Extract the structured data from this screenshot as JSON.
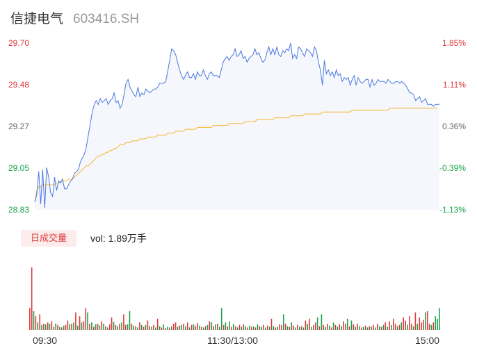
{
  "header": {
    "stock_name": "信捷电气",
    "stock_code": "603416.SH"
  },
  "price_axis": {
    "left_labels": [
      "29.70",
      "29.48",
      "29.27",
      "29.05",
      "28.83"
    ],
    "right_labels": [
      "1.85%",
      "1.11%",
      "0.36%",
      "-0.39%",
      "-1.13%"
    ],
    "label_colors": [
      "#e0383a",
      "#e0383a",
      "#666666",
      "#1aa34a",
      "#1aa34a"
    ]
  },
  "volume": {
    "tab_label": "日成交量",
    "readout": "vol: 1.89万手"
  },
  "time_axis": [
    "09:30",
    "11:30/13:00",
    "15:00"
  ],
  "colors": {
    "price_line": "#4a78e0",
    "avg_line": "#f5b52a",
    "up": "#e0383a",
    "down": "#1aa34a",
    "area_fill": "#f5f7fd"
  },
  "chart_data": [
    {
      "type": "line",
      "title": "",
      "ylim": [
        28.83,
        29.7
      ],
      "x_range": [
        "09:30",
        "15:00"
      ],
      "series": [
        {
          "name": "",
          "values": [
            28.87,
            28.91,
            29.03,
            28.86,
            29.04,
            28.84,
            29.05,
            29.0,
            28.92,
            28.9,
            29.0,
            28.93,
            28.98,
            28.97,
            28.99,
            28.94,
            28.94,
            28.96,
            28.98,
            28.99,
            29.02,
            29.03,
            29.04,
            29.08,
            29.1,
            29.12,
            29.16,
            29.22,
            29.28,
            29.34,
            29.38,
            29.4,
            29.38,
            29.41,
            29.39,
            29.4,
            29.41,
            29.38,
            29.4,
            29.41,
            29.44,
            29.39,
            29.4,
            29.36,
            29.38,
            29.43,
            29.49,
            29.51,
            29.47,
            29.45,
            29.43,
            29.42,
            29.47,
            29.42,
            29.44,
            29.43,
            29.46,
            29.45,
            29.44,
            29.45,
            29.46,
            29.46,
            29.47,
            29.49,
            29.49,
            29.49,
            29.5,
            29.55,
            29.61,
            29.67,
            29.66,
            29.64,
            29.6,
            29.56,
            29.53,
            29.51,
            29.53,
            29.55,
            29.52,
            29.52,
            29.54,
            29.51,
            29.55,
            29.53,
            29.53,
            29.56,
            29.53,
            29.51,
            29.54,
            29.55,
            29.53,
            29.53,
            29.53,
            29.52,
            29.56,
            29.6,
            29.62,
            29.63,
            29.61,
            29.63,
            29.64,
            29.67,
            29.63,
            29.64,
            29.66,
            29.62,
            29.63,
            29.6,
            29.62,
            29.63,
            29.64,
            29.67,
            29.64,
            29.65,
            29.62,
            29.6,
            29.61,
            29.65,
            29.68,
            29.64,
            29.67,
            29.64,
            29.68,
            29.64,
            29.63,
            29.66,
            29.65,
            29.67,
            29.66,
            29.7,
            29.62,
            29.64,
            29.62,
            29.68,
            29.67,
            29.65,
            29.63,
            29.67,
            29.66,
            29.65,
            29.63,
            29.68,
            29.66,
            29.6,
            29.56,
            29.48,
            29.61,
            29.54,
            29.56,
            29.53,
            29.55,
            29.52,
            29.56,
            29.53,
            29.54,
            29.5,
            29.52,
            29.51,
            29.52,
            29.48,
            29.51,
            29.53,
            29.48,
            29.52,
            29.5,
            29.49,
            29.5,
            29.51,
            29.51,
            29.47,
            29.51,
            29.48,
            29.49,
            29.51,
            29.5,
            29.5,
            29.5,
            29.49,
            29.51,
            29.5,
            29.49,
            29.49,
            29.5,
            29.5,
            29.49,
            29.5,
            29.49,
            29.48,
            29.46,
            29.44,
            29.44,
            29.43,
            29.4,
            29.41,
            29.42,
            29.39,
            29.4,
            29.41,
            29.38,
            29.38,
            29.38,
            29.37,
            29.38,
            29.38,
            29.38
          ]
        },
        {
          "name": "",
          "values": [
            28.87,
            28.93,
            28.95,
            28.95,
            28.96,
            28.96,
            28.96,
            28.96,
            28.96,
            28.96,
            28.96,
            28.97,
            28.97,
            28.98,
            28.98,
            28.98,
            28.98,
            28.99,
            28.99,
            28.99,
            29.0,
            29.01,
            29.02,
            29.03,
            29.04,
            29.05,
            29.06,
            29.06,
            29.07,
            29.08,
            29.09,
            29.1,
            29.11,
            29.11,
            29.12,
            29.12,
            29.13,
            29.13,
            29.14,
            29.14,
            29.15,
            29.15,
            29.16,
            29.17,
            29.17,
            29.17,
            29.18,
            29.18,
            29.18,
            29.19,
            29.19,
            29.19,
            29.19,
            29.2,
            29.2,
            29.2,
            29.2,
            29.21,
            29.21,
            29.21,
            29.21,
            29.21,
            29.22,
            29.22,
            29.22,
            29.22,
            29.22,
            29.23,
            29.23,
            29.23,
            29.23,
            29.24,
            29.24,
            29.24,
            29.24,
            29.24,
            29.25,
            29.25,
            29.25,
            29.25,
            29.25,
            29.25,
            29.26,
            29.26,
            29.26,
            29.26,
            29.26,
            29.26,
            29.26,
            29.26,
            29.27,
            29.27,
            29.27,
            29.27,
            29.27,
            29.27,
            29.27,
            29.27,
            29.28,
            29.28,
            29.28,
            29.28,
            29.28,
            29.28,
            29.28,
            29.28,
            29.29,
            29.29,
            29.29,
            29.29,
            29.29,
            29.29,
            29.3,
            29.3,
            29.3,
            29.3,
            29.3,
            29.3,
            29.3,
            29.3,
            29.3,
            29.31,
            29.31,
            29.31,
            29.31,
            29.31,
            29.31,
            29.31,
            29.31,
            29.32,
            29.32,
            29.32,
            29.32,
            29.32,
            29.32,
            29.32,
            29.33,
            29.33,
            29.33,
            29.33,
            29.33,
            29.33,
            29.33,
            29.33,
            29.33,
            29.34,
            29.34,
            29.34,
            29.34,
            29.34,
            29.34,
            29.34,
            29.34,
            29.34,
            29.34,
            29.34,
            29.34,
            29.34,
            29.34,
            29.34,
            29.35,
            29.35,
            29.35,
            29.35,
            29.35,
            29.35,
            29.35,
            29.35,
            29.35,
            29.35,
            29.35,
            29.35,
            29.35,
            29.35,
            29.35,
            29.35,
            29.35,
            29.35,
            29.35,
            29.36,
            29.36,
            29.36,
            29.36,
            29.36,
            29.36,
            29.36,
            29.36,
            29.36,
            29.36,
            29.36,
            29.36,
            29.36,
            29.36,
            29.36,
            29.36,
            29.36,
            29.36,
            29.36,
            29.36,
            29.36,
            29.36,
            29.36,
            29.36,
            29.36
          ]
        }
      ]
    },
    {
      "type": "bar",
      "title": "",
      "x_range": [
        "09:30",
        "15:00"
      ],
      "values": [
        0.35,
        1.0,
        0.3,
        0.22,
        0.12,
        0.25,
        0.08,
        0.1,
        0.09,
        0.12,
        0.1,
        0.14,
        0.05,
        0.1,
        0.08,
        0.05,
        0.04,
        0.07,
        0.08,
        0.15,
        0.09,
        0.1,
        0.12,
        0.28,
        0.07,
        0.22,
        0.12,
        0.14,
        0.35,
        0.28,
        0.1,
        0.12,
        0.05,
        0.09,
        0.1,
        0.07,
        0.14,
        0.1,
        0.06,
        0.04,
        0.09,
        0.2,
        0.13,
        0.08,
        0.06,
        0.1,
        0.12,
        0.25,
        0.08,
        0.09,
        0.3,
        0.1,
        0.07,
        0.06,
        0.04,
        0.12,
        0.08,
        0.05,
        0.08,
        0.15,
        0.06,
        0.05,
        0.08,
        0.04,
        0.18,
        0.06,
        0.04,
        0.09,
        0.03,
        0.05,
        0.04,
        0.06,
        0.1,
        0.12,
        0.05,
        0.07,
        0.08,
        0.1,
        0.06,
        0.12,
        0.04,
        0.08,
        0.09,
        0.06,
        0.11,
        0.07,
        0.05,
        0.04,
        0.06,
        0.08,
        0.14,
        0.12,
        0.06,
        0.09,
        0.1,
        0.05,
        0.35,
        0.08,
        0.12,
        0.06,
        0.14,
        0.05,
        0.1,
        0.06,
        0.04,
        0.08,
        0.05,
        0.09,
        0.06,
        0.04,
        0.07,
        0.05,
        0.06,
        0.04,
        0.09,
        0.06,
        0.05,
        0.08,
        0.04,
        0.07,
        0.05,
        0.18,
        0.06,
        0.04,
        0.05,
        0.09,
        0.08,
        0.25,
        0.1,
        0.06,
        0.05,
        0.12,
        0.07,
        0.04,
        0.08,
        0.05,
        0.06,
        0.04,
        0.15,
        0.1,
        0.18,
        0.05,
        0.08,
        0.12,
        0.2,
        0.06,
        0.25,
        0.08,
        0.05,
        0.1,
        0.07,
        0.04,
        0.12,
        0.08,
        0.05,
        0.09,
        0.06,
        0.14,
        0.1,
        0.18,
        0.06,
        0.15,
        0.09,
        0.05,
        0.1,
        0.06,
        0.04,
        0.05,
        0.07,
        0.04,
        0.06,
        0.05,
        0.08,
        0.04,
        0.1,
        0.06,
        0.05,
        0.08,
        0.12,
        0.05,
        0.14,
        0.08,
        0.18,
        0.1,
        0.06,
        0.08,
        0.12,
        0.2,
        0.15,
        0.08,
        0.22,
        0.1,
        0.06,
        0.28,
        0.1,
        0.2,
        0.12,
        0.16,
        0.28,
        0.3,
        0.1,
        0.08,
        0.12,
        0.22,
        0.18,
        0.35
      ],
      "colors": [
        "u",
        "u",
        "d",
        "u",
        "d",
        "u",
        "d",
        "u",
        "d",
        "u",
        "d",
        "u",
        "u",
        "d",
        "u",
        "d",
        "u",
        "d",
        "u",
        "u",
        "d",
        "u",
        "d",
        "u",
        "d",
        "u",
        "d",
        "u",
        "u",
        "d",
        "u",
        "d",
        "u",
        "d",
        "u",
        "d",
        "u",
        "d",
        "u",
        "d",
        "u",
        "u",
        "d",
        "u",
        "d",
        "u",
        "d",
        "u",
        "u",
        "d",
        "d",
        "u",
        "d",
        "u",
        "d",
        "u",
        "d",
        "u",
        "d",
        "u",
        "u",
        "d",
        "u",
        "d",
        "u",
        "d",
        "u",
        "d",
        "u",
        "d",
        "u",
        "d",
        "u",
        "u",
        "d",
        "u",
        "d",
        "u",
        "d",
        "u",
        "d",
        "u",
        "d",
        "u",
        "u",
        "d",
        "u",
        "d",
        "u",
        "d",
        "u",
        "d",
        "u",
        "d",
        "u",
        "d",
        "d",
        "u",
        "d",
        "u",
        "d",
        "u",
        "d",
        "u",
        "d",
        "u",
        "d",
        "u",
        "d",
        "u",
        "d",
        "u",
        "d",
        "u",
        "d",
        "u",
        "d",
        "u",
        "d",
        "u",
        "d",
        "u",
        "d",
        "u",
        "d",
        "u",
        "u",
        "d",
        "u",
        "d",
        "u",
        "d",
        "u",
        "d",
        "u",
        "d",
        "u",
        "d",
        "u",
        "d",
        "u",
        "d",
        "u",
        "u",
        "d",
        "u",
        "d",
        "u",
        "d",
        "u",
        "d",
        "u",
        "d",
        "u",
        "d",
        "u",
        "d",
        "u",
        "u",
        "d",
        "u",
        "d",
        "u",
        "d",
        "u",
        "d",
        "u",
        "d",
        "u",
        "d",
        "u",
        "d",
        "u",
        "d",
        "u",
        "d",
        "u",
        "d",
        "u",
        "d",
        "u",
        "d",
        "u",
        "u",
        "d",
        "u",
        "d",
        "u",
        "u",
        "d",
        "u",
        "u",
        "d",
        "u",
        "d",
        "u",
        "u",
        "u",
        "d",
        "u",
        "u",
        "d",
        "u",
        "d"
      ]
    }
  ]
}
